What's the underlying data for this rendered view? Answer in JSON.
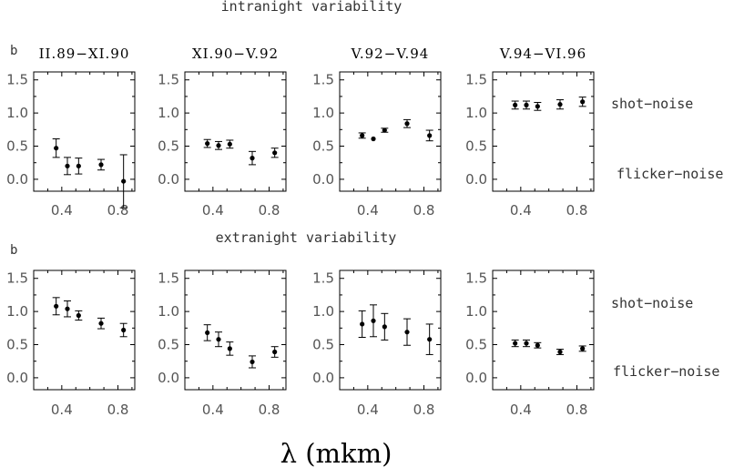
{
  "figure": {
    "xlabel": "λ  (mkm)",
    "rows": [
      {
        "title": "intranight  variability",
        "label": "b"
      },
      {
        "title": "extranight  variability",
        "label": "b"
      }
    ],
    "side_labels": {
      "top": "shot−noise",
      "bottom": "flicker−noise"
    },
    "columns": [
      "II.89−XI.90",
      "XI.90−V.92",
      "V.92−V.94",
      "V.94−VI.96"
    ]
  },
  "chart_data": [
    {
      "type": "scatter",
      "row": 0,
      "title": "II.89−XI.90",
      "xlim": [
        0.2,
        0.92
      ],
      "ylim": [
        -0.18,
        1.62
      ],
      "xticks": [
        "0.4",
        "0.8"
      ],
      "yticks": [
        "0.0",
        "0.5",
        "1.0",
        "1.5"
      ],
      "points": [
        {
          "x": 0.36,
          "y": 0.47,
          "err": 0.14
        },
        {
          "x": 0.44,
          "y": 0.2,
          "err": 0.13
        },
        {
          "x": 0.52,
          "y": 0.2,
          "err": 0.12
        },
        {
          "x": 0.68,
          "y": 0.22,
          "err": 0.08
        },
        {
          "x": 0.84,
          "y": -0.03,
          "err": 0.4
        }
      ]
    },
    {
      "type": "scatter",
      "row": 0,
      "title": "XI.90−V.92",
      "xlim": [
        0.2,
        0.92
      ],
      "ylim": [
        -0.18,
        1.62
      ],
      "xticks": [
        "0.4",
        "0.8"
      ],
      "yticks": [
        "0.0",
        "0.5",
        "1.0",
        "1.5"
      ],
      "points": [
        {
          "x": 0.36,
          "y": 0.54,
          "err": 0.06
        },
        {
          "x": 0.44,
          "y": 0.51,
          "err": 0.06
        },
        {
          "x": 0.52,
          "y": 0.53,
          "err": 0.06
        },
        {
          "x": 0.68,
          "y": 0.32,
          "err": 0.1
        },
        {
          "x": 0.84,
          "y": 0.4,
          "err": 0.07
        }
      ]
    },
    {
      "type": "scatter",
      "row": 0,
      "title": "V.92−V.94",
      "xlim": [
        0.2,
        0.92
      ],
      "ylim": [
        -0.18,
        1.62
      ],
      "xticks": [
        "0.4",
        "0.8"
      ],
      "yticks": [
        "0.0",
        "0.5",
        "1.0",
        "1.5"
      ],
      "points": [
        {
          "x": 0.36,
          "y": 0.66,
          "err": 0.04
        },
        {
          "x": 0.44,
          "y": 0.61,
          "err": 0.0
        },
        {
          "x": 0.52,
          "y": 0.74,
          "err": 0.03
        },
        {
          "x": 0.68,
          "y": 0.84,
          "err": 0.06
        },
        {
          "x": 0.84,
          "y": 0.66,
          "err": 0.08
        }
      ]
    },
    {
      "type": "scatter",
      "row": 0,
      "title": "V.94−VI.96",
      "xlim": [
        0.2,
        0.92
      ],
      "ylim": [
        -0.18,
        1.62
      ],
      "xticks": [
        "0.4",
        "0.8"
      ],
      "yticks": [
        "0.0",
        "0.5",
        "1.0",
        "1.5"
      ],
      "points": [
        {
          "x": 0.36,
          "y": 1.12,
          "err": 0.06
        },
        {
          "x": 0.44,
          "y": 1.12,
          "err": 0.06
        },
        {
          "x": 0.52,
          "y": 1.1,
          "err": 0.06
        },
        {
          "x": 0.68,
          "y": 1.13,
          "err": 0.07
        },
        {
          "x": 0.84,
          "y": 1.17,
          "err": 0.07
        }
      ]
    },
    {
      "type": "scatter",
      "row": 1,
      "title": "",
      "xlim": [
        0.2,
        0.92
      ],
      "ylim": [
        -0.18,
        1.62
      ],
      "xticks": [
        "0.4",
        "0.8"
      ],
      "yticks": [
        "0.0",
        "0.5",
        "1.0",
        "1.5"
      ],
      "points": [
        {
          "x": 0.36,
          "y": 1.08,
          "err": 0.13
        },
        {
          "x": 0.44,
          "y": 1.04,
          "err": 0.12
        },
        {
          "x": 0.52,
          "y": 0.94,
          "err": 0.07
        },
        {
          "x": 0.68,
          "y": 0.82,
          "err": 0.08
        },
        {
          "x": 0.84,
          "y": 0.72,
          "err": 0.1
        }
      ]
    },
    {
      "type": "scatter",
      "row": 1,
      "title": "",
      "xlim": [
        0.2,
        0.92
      ],
      "ylim": [
        -0.18,
        1.62
      ],
      "xticks": [
        "0.4",
        "0.8"
      ],
      "yticks": [
        "0.0",
        "0.5",
        "1.0",
        "1.5"
      ],
      "points": [
        {
          "x": 0.36,
          "y": 0.68,
          "err": 0.12
        },
        {
          "x": 0.44,
          "y": 0.58,
          "err": 0.11
        },
        {
          "x": 0.52,
          "y": 0.44,
          "err": 0.1
        },
        {
          "x": 0.68,
          "y": 0.24,
          "err": 0.09
        },
        {
          "x": 0.84,
          "y": 0.39,
          "err": 0.08
        }
      ]
    },
    {
      "type": "scatter",
      "row": 1,
      "title": "",
      "xlim": [
        0.2,
        0.92
      ],
      "ylim": [
        -0.18,
        1.62
      ],
      "xticks": [
        "0.4",
        "0.8"
      ],
      "yticks": [
        "0.0",
        "0.5",
        "1.0",
        "1.5"
      ],
      "points": [
        {
          "x": 0.36,
          "y": 0.81,
          "err": 0.2
        },
        {
          "x": 0.44,
          "y": 0.86,
          "err": 0.24
        },
        {
          "x": 0.52,
          "y": 0.77,
          "err": 0.2
        },
        {
          "x": 0.68,
          "y": 0.69,
          "err": 0.2
        },
        {
          "x": 0.84,
          "y": 0.58,
          "err": 0.23
        }
      ]
    },
    {
      "type": "scatter",
      "row": 1,
      "title": "",
      "xlim": [
        0.2,
        0.92
      ],
      "ylim": [
        -0.18,
        1.62
      ],
      "xticks": [
        "0.4",
        "0.8"
      ],
      "yticks": [
        "0.0",
        "0.5",
        "1.0",
        "1.5"
      ],
      "points": [
        {
          "x": 0.36,
          "y": 0.52,
          "err": 0.05
        },
        {
          "x": 0.44,
          "y": 0.52,
          "err": 0.05
        },
        {
          "x": 0.52,
          "y": 0.49,
          "err": 0.04
        },
        {
          "x": 0.68,
          "y": 0.39,
          "err": 0.04
        },
        {
          "x": 0.84,
          "y": 0.44,
          "err": 0.04
        }
      ]
    }
  ]
}
